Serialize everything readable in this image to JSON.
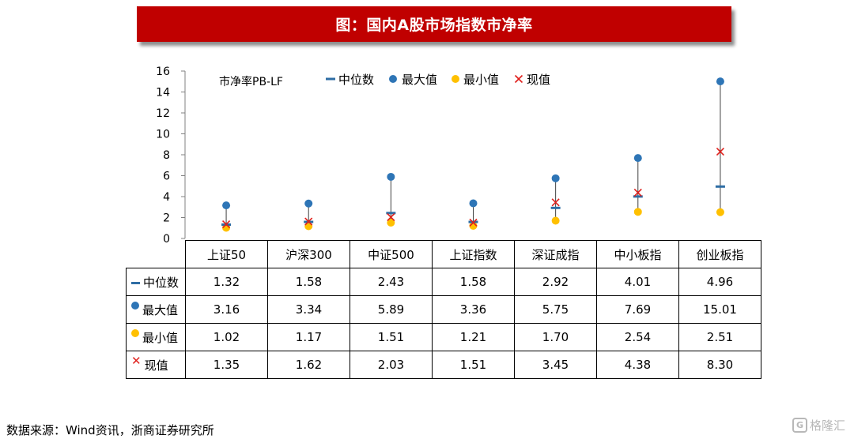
{
  "title": "图：国内A股市场指数市净率",
  "source": "数据来源：Wind资讯，浙商证券研究所",
  "watermark": "格隆汇",
  "chart_data": {
    "type": "scatter",
    "ylabel": "市净率PB-LF",
    "ylim": [
      0,
      16
    ],
    "yticks": [
      0,
      2,
      4,
      6,
      8,
      10,
      12,
      14,
      16
    ],
    "categories": [
      "上证50",
      "沪深300",
      "中证500",
      "上证指数",
      "深证成指",
      "中小板指",
      "创业板指"
    ],
    "legend_position": "top",
    "series": [
      {
        "name": "中位数",
        "marker": "dash",
        "color": "#2e6da4",
        "values": [
          1.32,
          1.58,
          2.43,
          1.58,
          2.92,
          4.01,
          4.96
        ]
      },
      {
        "name": "最大值",
        "marker": "circle",
        "color": "#2e75b6",
        "values": [
          3.16,
          3.34,
          5.89,
          3.36,
          5.75,
          7.69,
          15.01
        ]
      },
      {
        "name": "最小值",
        "marker": "circle",
        "color": "#ffc000",
        "values": [
          1.02,
          1.17,
          1.51,
          1.21,
          1.7,
          2.54,
          2.51
        ]
      },
      {
        "name": "现值",
        "marker": "x",
        "color": "#e0201c",
        "values": [
          1.35,
          1.62,
          2.03,
          1.51,
          3.45,
          4.38,
          8.3
        ]
      }
    ],
    "table_values": [
      [
        "1.32",
        "1.58",
        "2.43",
        "1.58",
        "2.92",
        "4.01",
        "4.96"
      ],
      [
        "3.16",
        "3.34",
        "5.89",
        "3.36",
        "5.75",
        "7.69",
        "15.01"
      ],
      [
        "1.02",
        "1.17",
        "1.51",
        "1.21",
        "1.70",
        "2.54",
        "2.51"
      ],
      [
        "1.35",
        "1.62",
        "2.03",
        "1.51",
        "3.45",
        "4.38",
        "8.30"
      ]
    ]
  }
}
